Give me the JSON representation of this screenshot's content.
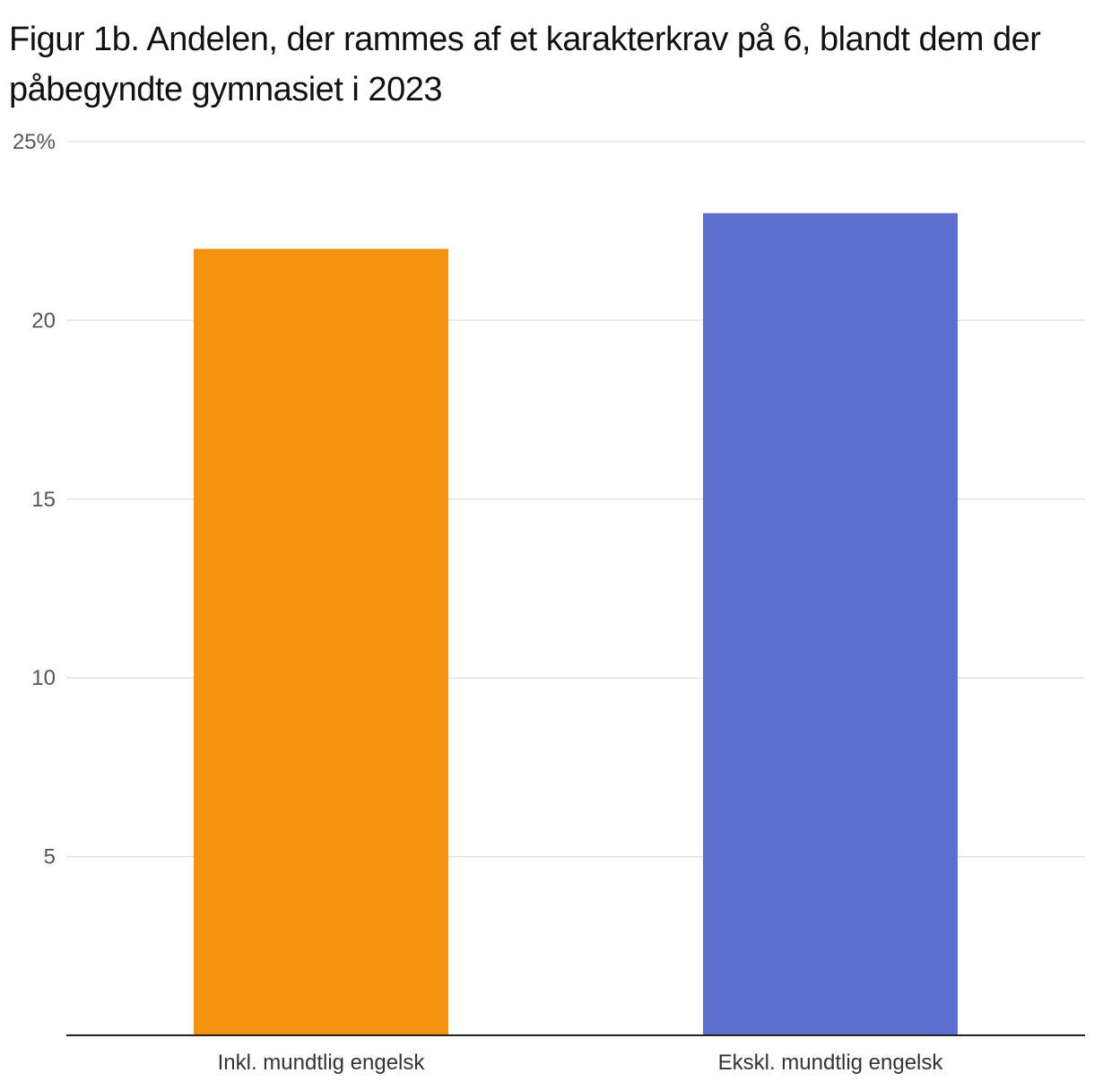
{
  "chart_data": {
    "type": "bar",
    "title": "Figur 1b. Andelen, der rammes af et karakterkrav på 6, blandt dem der påbegyndte gymnasiet i 2023",
    "xlabel": "",
    "ylabel": "",
    "categories": [
      "Inkl. mundtlig engelsk",
      "Ekskl. mundtlig engelsk"
    ],
    "values": [
      22,
      23
    ],
    "colors": [
      "#f2920f",
      "#5b6fcc"
    ],
    "ylim": [
      0,
      25
    ],
    "yticks": [
      5,
      10,
      15,
      20,
      25
    ],
    "ytick_labels": [
      "5",
      "10",
      "15",
      "20",
      "25%"
    ],
    "grid": true,
    "legend": "none"
  }
}
